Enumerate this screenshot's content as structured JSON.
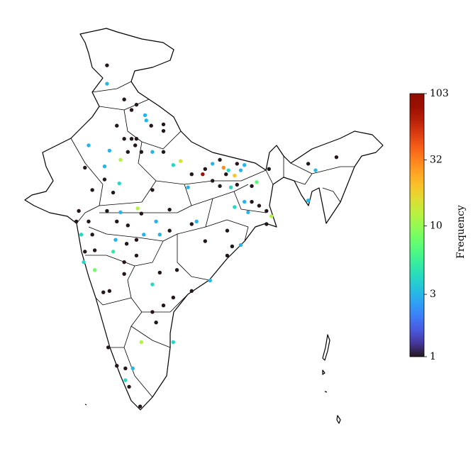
{
  "chart_data": {
    "type": "scatter",
    "colorbar_label": "Frequency",
    "colormap": "turbo",
    "scale": "log",
    "clim": [
      1,
      103
    ],
    "cticks": [
      1,
      3,
      10,
      32,
      103
    ],
    "lon": [
      74.9,
      74.9,
      76.3,
      76.9,
      77.3,
      78.0,
      78.1,
      78.5,
      79.5,
      79.5,
      75.7,
      76.3,
      76.9,
      77.3,
      77.2,
      76.0,
      76.6,
      77.7,
      78.6,
      79.5,
      73.4,
      75.1,
      74.7,
      73.1,
      74.7,
      75.9,
      73.7,
      75.4,
      78.6,
      80.3,
      80.9,
      81.8,
      82.7,
      82.9,
      83.5,
      84.1,
      84.4,
      84.6,
      84.8,
      85.3,
      85.8,
      86.1,
      85.5,
      83.5,
      84.1,
      85.0,
      85.5,
      86.7,
      87.1,
      85.3,
      86.1,
      86.7,
      87.3,
      87.9,
      86.4,
      88.3,
      87.9,
      88.1,
      91.3,
      91.9,
      93.6,
      91.3,
      81.5,
      80.0,
      77.4,
      77.7,
      76.0,
      74.9,
      72.6,
      72.4,
      73.4,
      75.7,
      76.6,
      78.9,
      77.9,
      79.2,
      80.0,
      81.8,
      82.2,
      82.9,
      84.7,
      85.8,
      85.1,
      84.7,
      72.8,
      73.7,
      73.1,
      73.9,
      75.4,
      75.6,
      76.5,
      77.3,
      73.0,
      73.9,
      76.3,
      76.3,
      77.3,
      78.6,
      79.2,
      80.6,
      83.3,
      81.8,
      80.3,
      79.5,
      74.6,
      75.1,
      78.6,
      78.9,
      77.7,
      80.3,
      75.0,
      75.7,
      77.0,
      76.4,
      76.4,
      76.7,
      77.6
    ],
    "lat": [
      34.2,
      32.8,
      31.6,
      30.8,
      31.2,
      30.4,
      30.0,
      29.6,
      29.7,
      29.2,
      29.6,
      28.6,
      28.6,
      28.6,
      28.1,
      27.0,
      27.6,
      27.6,
      27.6,
      27.6,
      28.1,
      27.7,
      26.5,
      26.4,
      25.5,
      25.2,
      24.7,
      24.5,
      24.7,
      26.6,
      26.9,
      25.9,
      25.9,
      26.3,
      26.7,
      27.0,
      26.4,
      25.9,
      26.2,
      25.8,
      26.2,
      26.6,
      26.7,
      25.4,
      25.0,
      24.9,
      25.1,
      25.0,
      25.3,
      23.4,
      23.8,
      23.8,
      23.5,
      23.1,
      23.0,
      22.7,
      22.1,
      26.3,
      26.7,
      26.2,
      27.2,
      23.9,
      24.9,
      23.2,
      23.3,
      22.9,
      23.0,
      23.1,
      23.1,
      22.3,
      22.3,
      22.3,
      22.0,
      22.3,
      21.3,
      21.3,
      21.6,
      22.1,
      22.3,
      20.8,
      21.6,
      20.5,
      20.4,
      19.7,
      21.3,
      21.3,
      20.0,
      20.1,
      20.0,
      20.9,
      20.6,
      20.9,
      19.2,
      18.6,
      19.2,
      18.3,
      19.7,
      17.5,
      18.4,
      18.6,
      17.8,
      17.0,
      16.5,
      15.9,
      16.9,
      17.0,
      15.4,
      14.6,
      13.1,
      13.1,
      12.7,
      11.3,
      11.1,
      11.1,
      10.2,
      9.7,
      8.2
    ],
    "values": [
      1,
      3,
      1,
      1,
      1,
      3,
      3,
      1,
      1,
      1,
      1,
      1,
      1,
      1,
      1,
      12,
      1,
      1,
      3,
      1,
      3,
      3,
      3,
      1,
      1,
      4,
      1,
      1,
      1,
      4,
      15,
      1,
      80,
      1,
      3,
      1,
      30,
      1,
      4,
      20,
      3,
      3,
      1,
      1,
      1,
      4,
      1,
      1,
      7,
      4,
      3,
      1,
      1,
      1,
      3,
      12,
      1,
      1,
      1,
      3,
      1,
      3,
      3,
      1,
      12,
      1,
      3,
      1,
      1,
      1,
      1,
      1,
      1,
      3,
      3,
      3,
      1,
      1,
      3,
      1,
      1,
      3,
      1,
      1,
      4,
      1,
      1,
      1,
      5,
      3,
      1,
      1,
      4,
      8,
      1,
      1,
      1,
      4,
      1,
      1,
      3,
      1,
      1,
      1,
      1,
      1,
      1,
      1,
      12,
      4,
      1,
      1,
      3,
      1,
      4,
      1,
      1
    ]
  }
}
